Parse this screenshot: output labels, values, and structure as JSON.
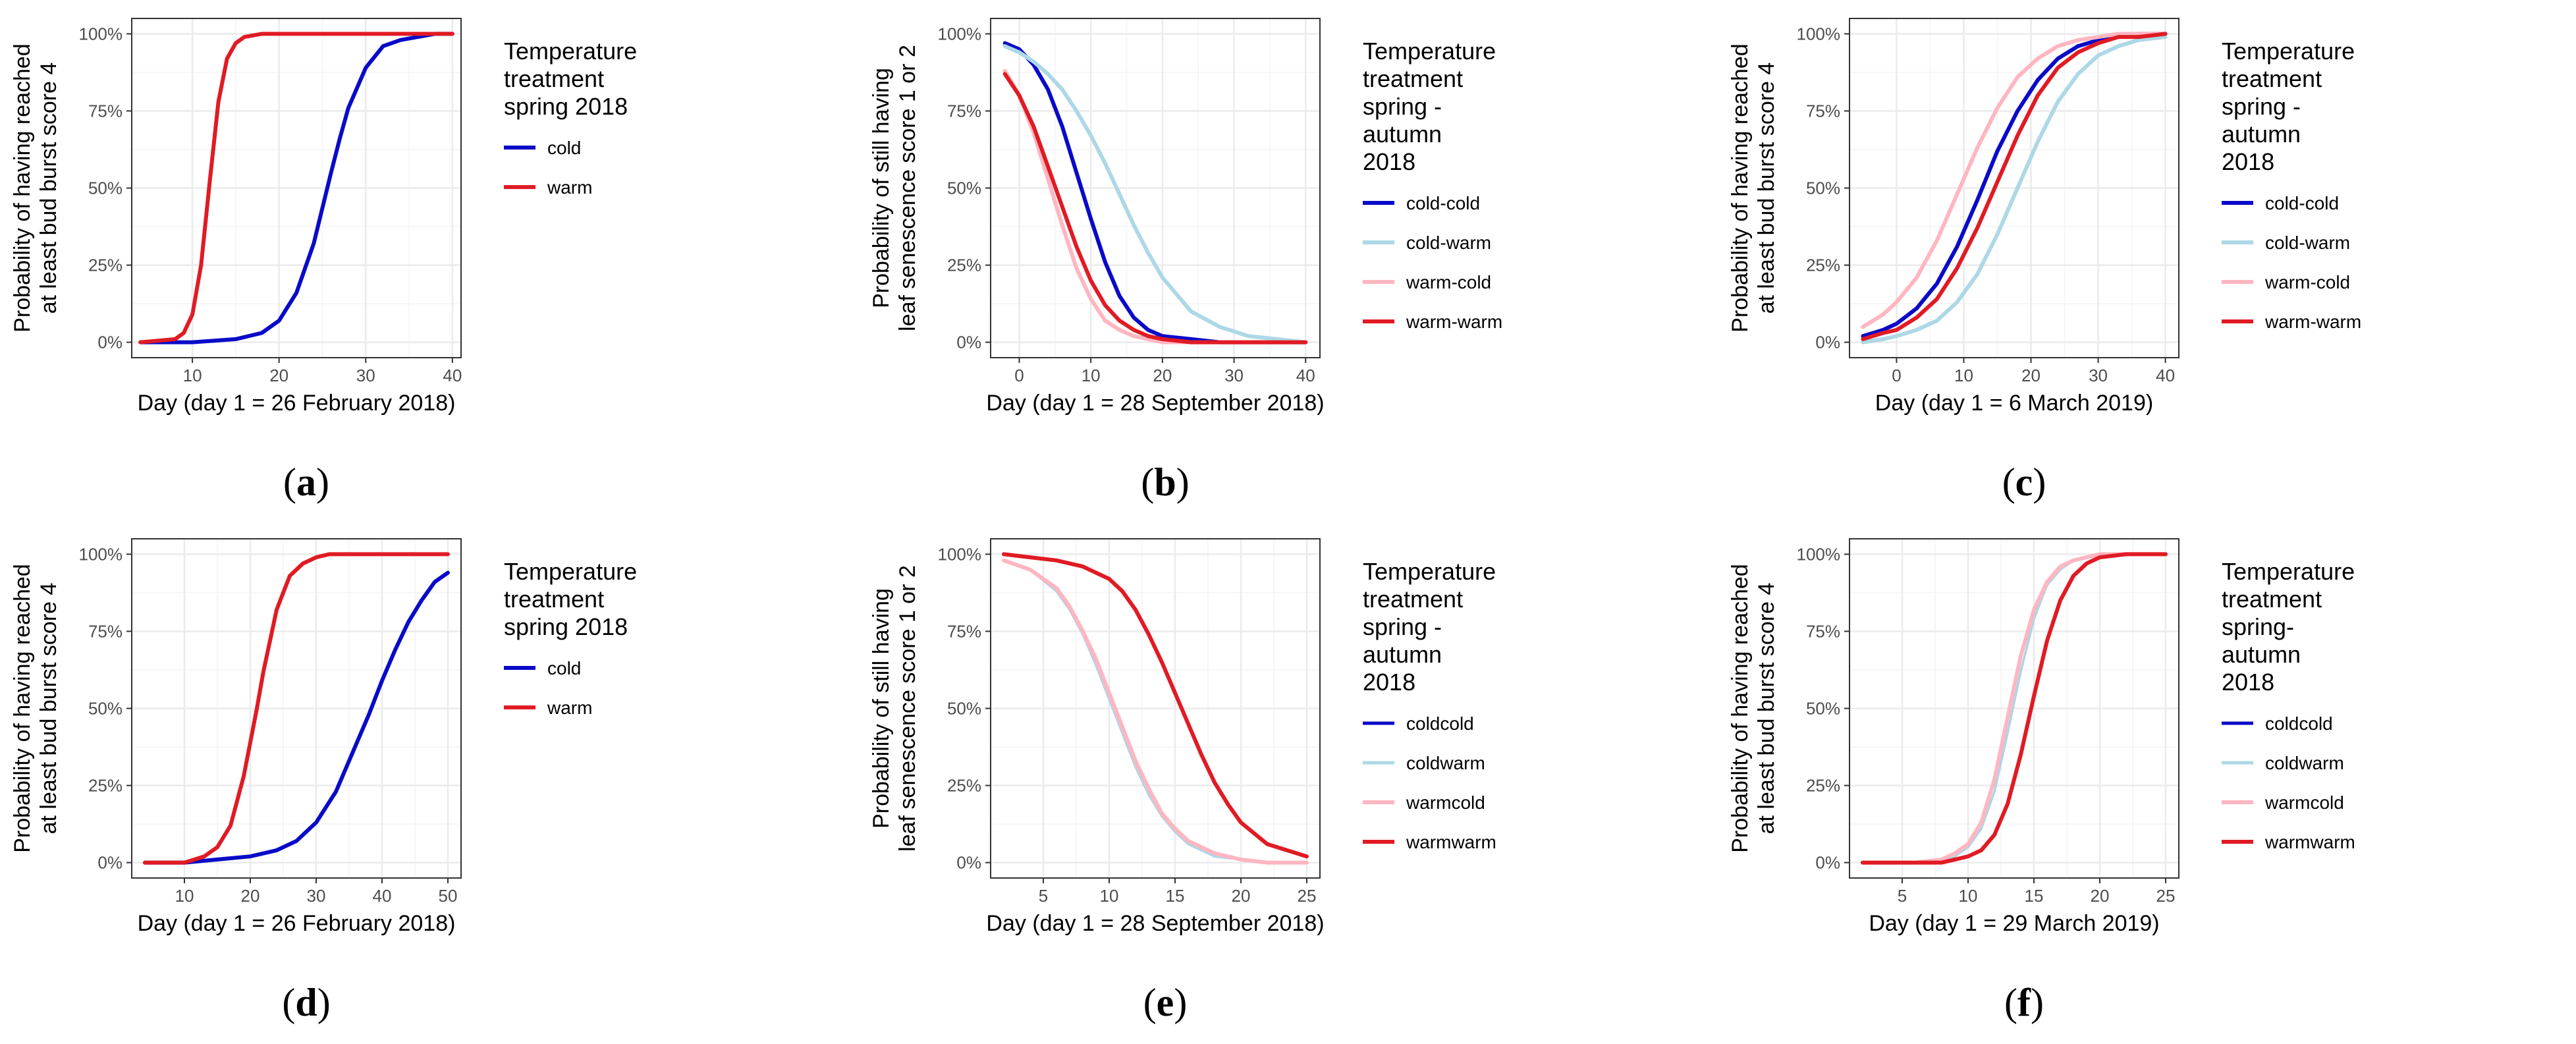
{
  "figure": {
    "colors": {
      "cold": "#0a0ac8",
      "warm": "#e01b24",
      "cold-warm": "#add8e6",
      "warm-cold": "#ffb6c1",
      "grid_major": "#ebebeb",
      "grid_minor": "#f4f4f4",
      "border": "#333333"
    }
  },
  "chart_data": [
    {
      "id": "a",
      "panel_label": "a",
      "type": "line",
      "ylabel_lines": [
        "Probability of having reached",
        "at least bud burst score 4"
      ],
      "xlabel": "Day (day 1 = 26 February 2018)",
      "xlim": [
        3,
        41
      ],
      "ylim": [
        -0.05,
        1.05
      ],
      "x_ticks": [
        10,
        20,
        30,
        40
      ],
      "y_ticks": [
        0,
        0.25,
        0.5,
        0.75,
        1
      ],
      "y_tick_labels": [
        "0%",
        "25%",
        "50%",
        "75%",
        "100%"
      ],
      "legend_title_lines": [
        "Temperature",
        "treatment",
        "spring 2018"
      ],
      "series": [
        {
          "name": "cold",
          "color_key": "cold",
          "width": 6,
          "x": [
            4,
            10,
            15,
            18,
            20,
            22,
            24,
            26,
            27,
            28,
            30,
            32,
            34,
            36,
            38,
            40
          ],
          "y": [
            0.0,
            0.0,
            0.01,
            0.03,
            0.07,
            0.16,
            0.32,
            0.55,
            0.66,
            0.76,
            0.89,
            0.96,
            0.98,
            0.99,
            1.0,
            1.0
          ]
        },
        {
          "name": "warm",
          "color_key": "warm",
          "width": 6,
          "x": [
            4,
            8,
            9,
            10,
            11,
            12,
            13,
            14,
            15,
            16,
            18,
            20,
            25,
            30,
            35,
            40
          ],
          "y": [
            0.0,
            0.01,
            0.03,
            0.09,
            0.25,
            0.52,
            0.78,
            0.92,
            0.97,
            0.99,
            1.0,
            1.0,
            1.0,
            1.0,
            1.0,
            1.0
          ]
        }
      ]
    },
    {
      "id": "b",
      "panel_label": "b",
      "type": "line",
      "ylabel_lines": [
        "Probability of still having",
        "leaf senescence score 1 or 2"
      ],
      "xlabel": "Day (day 1 = 28 September 2018)",
      "xlim": [
        -4,
        42
      ],
      "ylim": [
        -0.05,
        1.05
      ],
      "x_ticks": [
        0,
        10,
        20,
        30,
        40
      ],
      "y_ticks": [
        0,
        0.25,
        0.5,
        0.75,
        1
      ],
      "y_tick_labels": [
        "0%",
        "25%",
        "50%",
        "75%",
        "100%"
      ],
      "legend_title_lines": [
        "Temperature",
        "treatment",
        "spring -",
        "autumn",
        "2018"
      ],
      "series": [
        {
          "name": "cold-cold",
          "color_key": "cold",
          "width": 6,
          "x": [
            -2,
            0,
            2,
            4,
            6,
            8,
            10,
            12,
            14,
            16,
            18,
            20,
            24,
            28,
            32,
            36,
            40
          ],
          "y": [
            0.97,
            0.95,
            0.9,
            0.82,
            0.7,
            0.55,
            0.4,
            0.26,
            0.15,
            0.08,
            0.04,
            0.02,
            0.01,
            0.0,
            0.0,
            0.0,
            0.0
          ]
        },
        {
          "name": "cold-warm",
          "color_key": "cold-warm",
          "width": 6,
          "x": [
            -2,
            0,
            2,
            4,
            6,
            8,
            10,
            12,
            14,
            16,
            18,
            20,
            24,
            28,
            32,
            36,
            40
          ],
          "y": [
            0.96,
            0.94,
            0.91,
            0.87,
            0.82,
            0.75,
            0.67,
            0.58,
            0.48,
            0.38,
            0.29,
            0.21,
            0.1,
            0.05,
            0.02,
            0.01,
            0.0
          ]
        },
        {
          "name": "warm-cold",
          "color_key": "warm-cold",
          "width": 6,
          "x": [
            -2,
            0,
            2,
            4,
            6,
            8,
            10,
            12,
            14,
            16,
            18,
            20,
            24,
            28,
            32,
            36,
            40
          ],
          "y": [
            0.88,
            0.8,
            0.68,
            0.53,
            0.38,
            0.24,
            0.14,
            0.07,
            0.04,
            0.02,
            0.01,
            0.0,
            0.0,
            0.0,
            0.0,
            0.0,
            0.0
          ]
        },
        {
          "name": "warm-warm",
          "color_key": "warm",
          "width": 6,
          "x": [
            -2,
            0,
            2,
            4,
            6,
            8,
            10,
            12,
            14,
            16,
            18,
            20,
            24,
            28,
            32,
            36,
            40
          ],
          "y": [
            0.87,
            0.8,
            0.7,
            0.57,
            0.44,
            0.31,
            0.2,
            0.12,
            0.07,
            0.04,
            0.02,
            0.01,
            0.0,
            0.0,
            0.0,
            0.0,
            0.0
          ]
        }
      ]
    },
    {
      "id": "c",
      "panel_label": "c",
      "type": "line",
      "ylabel_lines": [
        "Probability of having reached",
        "at least bud burst score 4"
      ],
      "xlabel": "Day (day 1 = 6 March 2019)",
      "xlim": [
        -7,
        42
      ],
      "ylim": [
        -0.05,
        1.05
      ],
      "x_ticks": [
        0,
        10,
        20,
        30,
        40
      ],
      "y_ticks": [
        0,
        0.25,
        0.5,
        0.75,
        1
      ],
      "y_tick_labels": [
        "0%",
        "25%",
        "50%",
        "75%",
        "100%"
      ],
      "legend_title_lines": [
        "Temperature",
        "treatment",
        "spring -",
        "autumn",
        "2018"
      ],
      "series": [
        {
          "name": "cold-cold",
          "color_key": "cold",
          "width": 6,
          "x": [
            -5,
            -2,
            0,
            3,
            6,
            9,
            12,
            15,
            18,
            21,
            24,
            27,
            30,
            33,
            36,
            40
          ],
          "y": [
            0.02,
            0.04,
            0.06,
            0.11,
            0.19,
            0.31,
            0.46,
            0.62,
            0.75,
            0.85,
            0.92,
            0.96,
            0.98,
            0.99,
            1.0,
            1.0
          ]
        },
        {
          "name": "cold-warm",
          "color_key": "cold-warm",
          "width": 6,
          "x": [
            -5,
            -2,
            0,
            3,
            6,
            9,
            12,
            15,
            18,
            21,
            24,
            27,
            30,
            33,
            36,
            40
          ],
          "y": [
            0.0,
            0.01,
            0.02,
            0.04,
            0.07,
            0.13,
            0.22,
            0.35,
            0.5,
            0.65,
            0.78,
            0.87,
            0.93,
            0.96,
            0.98,
            0.99
          ]
        },
        {
          "name": "warm-cold",
          "color_key": "warm-cold",
          "width": 6,
          "x": [
            -5,
            -2,
            0,
            3,
            6,
            9,
            12,
            15,
            18,
            21,
            24,
            27,
            30,
            33,
            36,
            40
          ],
          "y": [
            0.05,
            0.09,
            0.13,
            0.21,
            0.33,
            0.48,
            0.63,
            0.76,
            0.86,
            0.92,
            0.96,
            0.98,
            0.99,
            1.0,
            1.0,
            1.0
          ]
        },
        {
          "name": "warm-warm",
          "color_key": "warm",
          "width": 6,
          "x": [
            -5,
            -2,
            0,
            3,
            6,
            9,
            12,
            15,
            18,
            21,
            24,
            27,
            30,
            33,
            36,
            40
          ],
          "y": [
            0.01,
            0.03,
            0.04,
            0.08,
            0.14,
            0.24,
            0.37,
            0.52,
            0.67,
            0.8,
            0.89,
            0.94,
            0.97,
            0.99,
            0.99,
            1.0
          ]
        }
      ]
    },
    {
      "id": "d",
      "panel_label": "d",
      "type": "line",
      "ylabel_lines": [
        "Probability of having reached",
        "at least bud burst score 4"
      ],
      "xlabel": "Day (day 1 = 26 February 2018)",
      "xlim": [
        2,
        52
      ],
      "ylim": [
        -0.05,
        1.05
      ],
      "x_ticks": [
        10,
        20,
        30,
        40,
        50
      ],
      "y_ticks": [
        0,
        0.25,
        0.5,
        0.75,
        1
      ],
      "y_tick_labels": [
        "0%",
        "25%",
        "50%",
        "75%",
        "100%"
      ],
      "legend_title_lines": [
        "Temperature",
        "treatment",
        "spring 2018"
      ],
      "series": [
        {
          "name": "cold",
          "color_key": "cold",
          "width": 6,
          "x": [
            4,
            10,
            15,
            20,
            24,
            27,
            30,
            33,
            36,
            38,
            40,
            42,
            44,
            46,
            48,
            50
          ],
          "y": [
            0.0,
            0.0,
            0.01,
            0.02,
            0.04,
            0.07,
            0.13,
            0.23,
            0.38,
            0.48,
            0.59,
            0.69,
            0.78,
            0.85,
            0.91,
            0.94
          ]
        },
        {
          "name": "warm",
          "color_key": "warm",
          "width": 6,
          "x": [
            4,
            10,
            13,
            15,
            17,
            19,
            21,
            22,
            24,
            26,
            28,
            30,
            32,
            35,
            40,
            50
          ],
          "y": [
            0.0,
            0.0,
            0.02,
            0.05,
            0.12,
            0.28,
            0.5,
            0.62,
            0.82,
            0.93,
            0.97,
            0.99,
            1.0,
            1.0,
            1.0,
            1.0
          ]
        }
      ]
    },
    {
      "id": "e",
      "panel_label": "e",
      "type": "line",
      "ylabel_lines": [
        "Probability of still having",
        "leaf senescence score 1 or 2"
      ],
      "xlabel": "Day (day 1 = 28 September 2018)",
      "xlim": [
        1,
        26
      ],
      "ylim": [
        -0.05,
        1.05
      ],
      "x_ticks": [
        5,
        10,
        15,
        20,
        25
      ],
      "y_ticks": [
        0,
        0.25,
        0.5,
        0.75,
        1
      ],
      "y_tick_labels": [
        "0%",
        "25%",
        "50%",
        "75%",
        "100%"
      ],
      "legend_title_lines": [
        "Temperature",
        "treatment",
        "spring -",
        "autumn",
        "2018"
      ],
      "series": [
        {
          "name": "coldcold",
          "color_key": "cold",
          "width": 3,
          "x": [
            2,
            4,
            6,
            7,
            8,
            9,
            10,
            11,
            12,
            13,
            14,
            15,
            16,
            18,
            20,
            22,
            25
          ],
          "y": [
            0.98,
            0.95,
            0.88,
            0.82,
            0.74,
            0.64,
            0.53,
            0.42,
            0.31,
            0.22,
            0.15,
            0.1,
            0.06,
            0.02,
            0.01,
            0.0,
            0.0
          ]
        },
        {
          "name": "coldwarm",
          "color_key": "cold-warm",
          "width": 3,
          "x": [
            2,
            4,
            6,
            7,
            8,
            9,
            10,
            11,
            12,
            13,
            14,
            15,
            16,
            18,
            20,
            22,
            25
          ],
          "y": [
            0.98,
            0.95,
            0.88,
            0.82,
            0.74,
            0.64,
            0.53,
            0.42,
            0.31,
            0.22,
            0.15,
            0.1,
            0.06,
            0.02,
            0.01,
            0.0,
            0.0
          ]
        },
        {
          "name": "warmcold",
          "color_key": "warm-cold",
          "width": 6,
          "x": [
            2,
            4,
            6,
            7,
            8,
            9,
            10,
            11,
            12,
            13,
            14,
            15,
            16,
            18,
            20,
            22,
            25
          ],
          "y": [
            0.98,
            0.95,
            0.89,
            0.83,
            0.75,
            0.66,
            0.55,
            0.44,
            0.33,
            0.24,
            0.16,
            0.11,
            0.07,
            0.03,
            0.01,
            0.0,
            0.0
          ]
        },
        {
          "name": "warmwarm",
          "color_key": "warm",
          "width": 6,
          "x": [
            2,
            4,
            6,
            8,
            10,
            11,
            12,
            13,
            14,
            15,
            16,
            17,
            18,
            19,
            20,
            22,
            25
          ],
          "y": [
            1.0,
            0.99,
            0.98,
            0.96,
            0.92,
            0.88,
            0.82,
            0.74,
            0.65,
            0.55,
            0.45,
            0.35,
            0.26,
            0.19,
            0.13,
            0.06,
            0.02
          ]
        }
      ]
    },
    {
      "id": "f",
      "panel_label": "f",
      "type": "line",
      "ylabel_lines": [
        "Probability of having reached",
        "at least bud burst score 4"
      ],
      "xlabel": "Day (day 1 = 29 March 2019)",
      "xlim": [
        1,
        26
      ],
      "ylim": [
        -0.05,
        1.05
      ],
      "x_ticks": [
        5,
        10,
        15,
        20,
        25
      ],
      "y_ticks": [
        0,
        0.25,
        0.5,
        0.75,
        1
      ],
      "y_tick_labels": [
        "0%",
        "25%",
        "50%",
        "75%",
        "100%"
      ],
      "legend_title_lines": [
        "Temperature",
        "treatment",
        "spring-",
        "autumn",
        "2018"
      ],
      "series": [
        {
          "name": "coldcold",
          "color_key": "cold",
          "width": 3,
          "x": [
            2,
            6,
            8,
            9,
            10,
            11,
            12,
            13,
            14,
            15,
            16,
            17,
            18,
            19,
            20,
            22,
            25
          ],
          "y": [
            0.0,
            0.0,
            0.01,
            0.02,
            0.05,
            0.11,
            0.23,
            0.42,
            0.62,
            0.79,
            0.9,
            0.95,
            0.98,
            0.99,
            1.0,
            1.0,
            1.0
          ]
        },
        {
          "name": "coldwarm",
          "color_key": "cold-warm",
          "width": 3,
          "x": [
            2,
            6,
            8,
            9,
            10,
            11,
            12,
            13,
            14,
            15,
            16,
            17,
            18,
            19,
            20,
            22,
            25
          ],
          "y": [
            0.0,
            0.0,
            0.01,
            0.02,
            0.05,
            0.11,
            0.23,
            0.42,
            0.62,
            0.79,
            0.9,
            0.95,
            0.98,
            0.99,
            1.0,
            1.0,
            1.0
          ]
        },
        {
          "name": "warmcold",
          "color_key": "warm-cold",
          "width": 6,
          "x": [
            2,
            6,
            8,
            9,
            10,
            11,
            12,
            13,
            14,
            15,
            16,
            17,
            18,
            19,
            20,
            22,
            25
          ],
          "y": [
            0.0,
            0.0,
            0.01,
            0.03,
            0.06,
            0.13,
            0.27,
            0.47,
            0.67,
            0.82,
            0.91,
            0.96,
            0.98,
            0.99,
            1.0,
            1.0,
            1.0
          ]
        },
        {
          "name": "warmwarm",
          "color_key": "warm",
          "width": 6,
          "x": [
            2,
            6,
            8,
            9,
            10,
            11,
            12,
            13,
            14,
            15,
            16,
            17,
            18,
            19,
            20,
            22,
            25
          ],
          "y": [
            0.0,
            0.0,
            0.0,
            0.01,
            0.02,
            0.04,
            0.09,
            0.19,
            0.35,
            0.54,
            0.72,
            0.85,
            0.93,
            0.97,
            0.99,
            1.0,
            1.0
          ]
        }
      ]
    }
  ]
}
